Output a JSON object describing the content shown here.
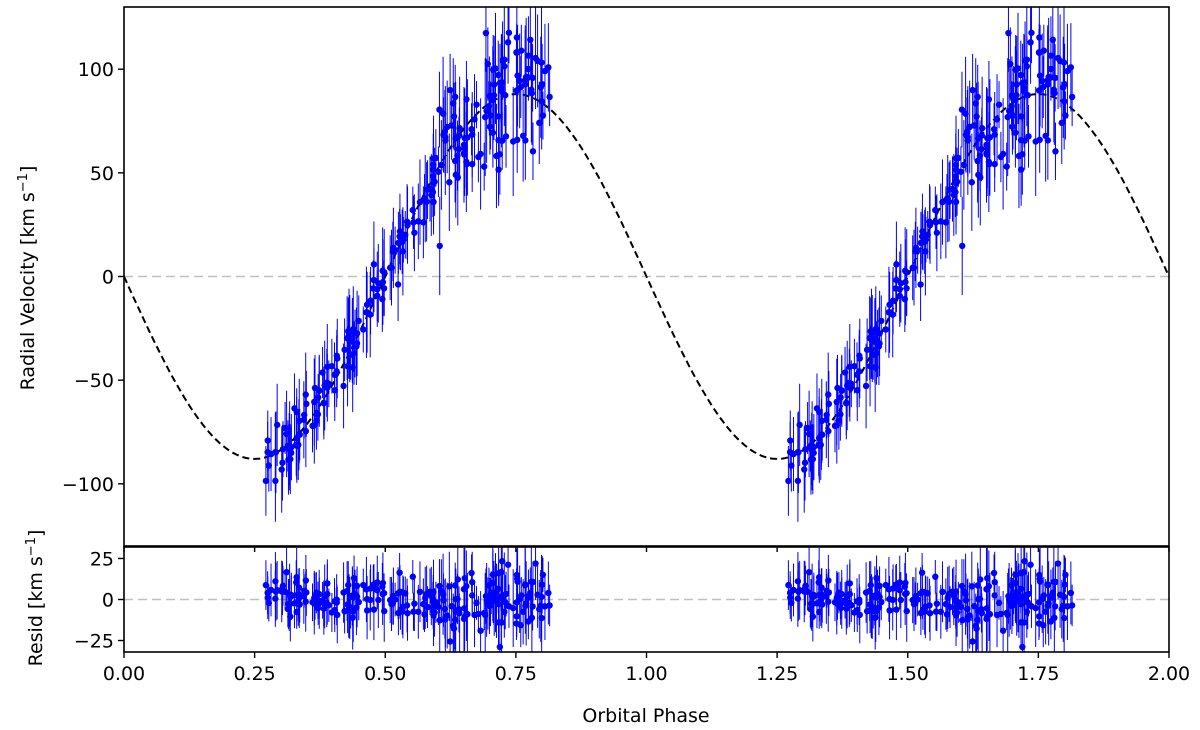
{
  "chart_data": [
    {
      "panel": "main",
      "type": "scatter",
      "xlabel": "",
      "ylabel_main": "Radial Velocity [km s",
      "ylabel_sup": "−1",
      "ylabel_close": "]",
      "xlim": [
        0.0,
        2.0
      ],
      "ylim": [
        -130,
        130
      ],
      "yticks": [
        100,
        50,
        0,
        -50,
        -100
      ],
      "ytick_labels": [
        "100",
        "50",
        "0",
        "−100"
      ],
      "ytick_labels_all": [
        "100",
        "50",
        "0",
        "−50",
        "−100"
      ],
      "reference_line": {
        "y": 0,
        "style": "dashed",
        "color": "#c0c0c0"
      },
      "model": {
        "type": "line",
        "style": "dashed",
        "color": "#000000",
        "amplitude": 88,
        "phase_start": 0.0,
        "phase_end": 2.0,
        "function": "v = -K*sin(2*pi*phase)"
      },
      "series": {
        "color": "#0000ff",
        "phase_ranges": [
          [
            0.27,
            0.815
          ],
          [
            1.27,
            1.815
          ]
        ],
        "trend": [
          [
            0.27,
            -88
          ],
          [
            0.32,
            -82
          ],
          [
            0.4,
            -48
          ],
          [
            0.5,
            0
          ],
          [
            0.6,
            50
          ],
          [
            0.7,
            85
          ],
          [
            0.75,
            95
          ],
          [
            0.815,
            90
          ]
        ],
        "scatter": 10,
        "error_range": [
          5,
          25
        ]
      }
    },
    {
      "panel": "residual",
      "type": "scatter",
      "xlabel": "Orbital Phase",
      "ylabel_main": "Resid [km s",
      "ylabel_sup": "−1",
      "ylabel_close": "]",
      "xlim": [
        0.0,
        2.0
      ],
      "ylim": [
        -32,
        32
      ],
      "xticks": [
        0.0,
        0.25,
        0.5,
        0.75,
        1.0,
        1.25,
        1.5,
        1.75,
        2.0
      ],
      "xtick_labels": [
        "0.00",
        "0.25",
        "0.50",
        "0.75",
        "1.00",
        "1.25",
        "1.50",
        "1.75",
        "2.00"
      ],
      "yticks": [
        25,
        0,
        -25
      ],
      "ytick_labels": [
        "25",
        "0",
        "−25"
      ],
      "reference_line": {
        "y": 0,
        "style": "dashed",
        "color": "#c0c0c0"
      },
      "series": {
        "color": "#0000ff",
        "phase_ranges": [
          [
            0.27,
            0.815
          ],
          [
            1.27,
            1.815
          ]
        ],
        "scatter_range": [
          -28,
          28
        ]
      }
    }
  ]
}
